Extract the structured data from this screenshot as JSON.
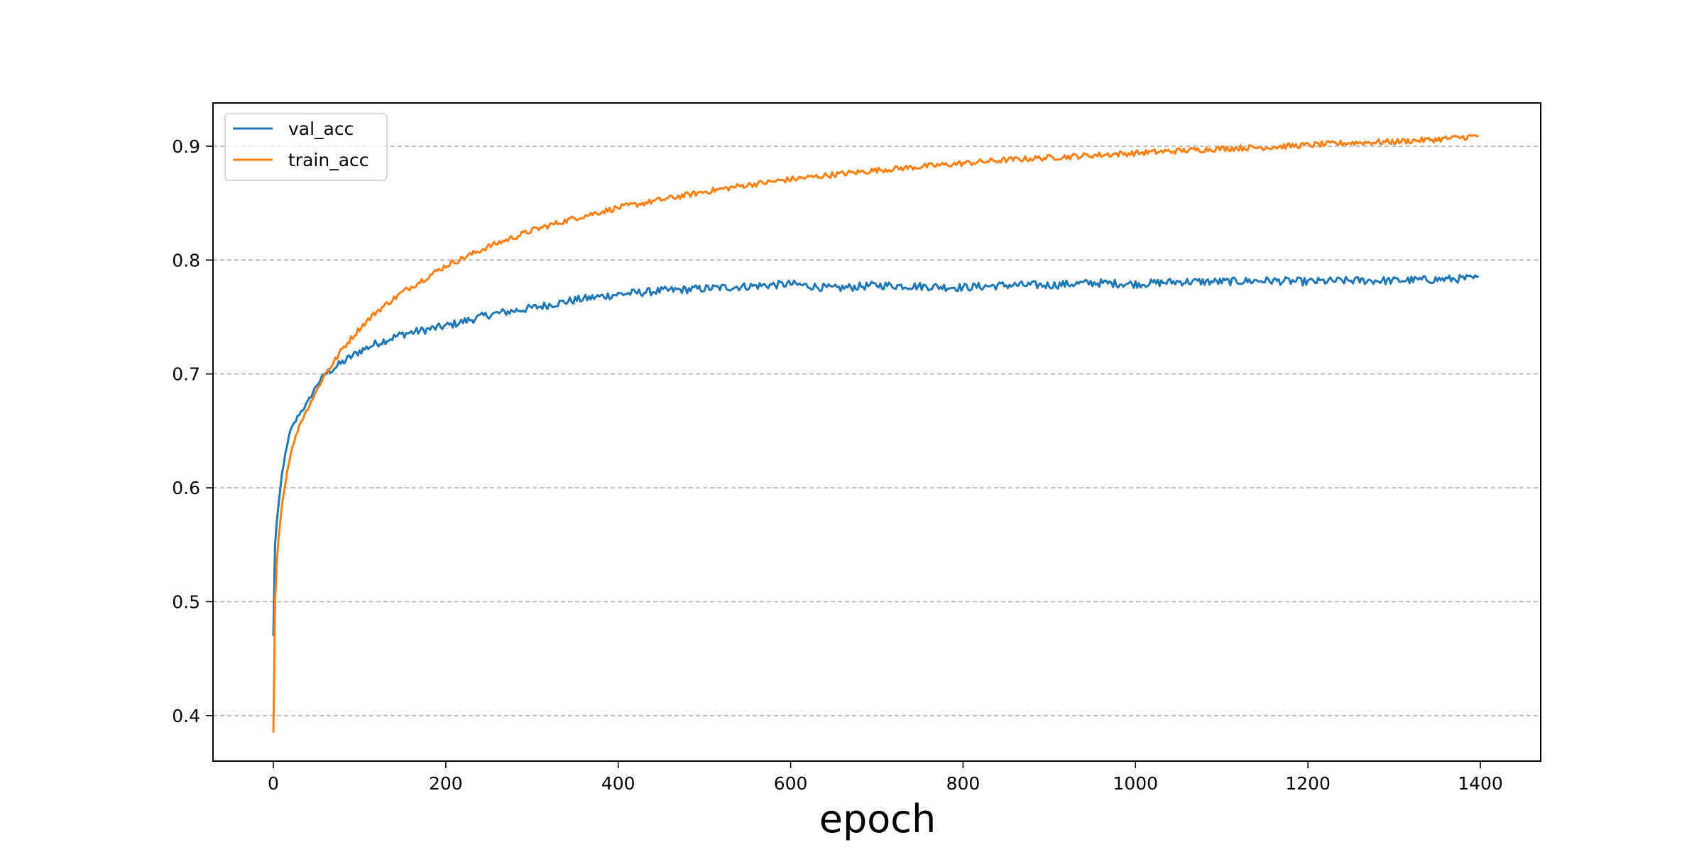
{
  "chart_data": {
    "type": "line",
    "title": "",
    "xlabel": "epoch",
    "ylabel": "",
    "xlim": [
      -70,
      1470
    ],
    "ylim": [
      0.36,
      0.938
    ],
    "xticks": [
      0,
      200,
      400,
      600,
      800,
      1000,
      1200,
      1400
    ],
    "yticks": [
      0.4,
      0.5,
      0.6,
      0.7,
      0.8,
      0.9
    ],
    "grid": "y-dashed",
    "legend": "top-left",
    "series": [
      {
        "name": "val_acc",
        "color": "#1f77b4",
        "x": [
          0,
          2,
          5,
          10,
          15,
          20,
          30,
          40,
          50,
          60,
          70,
          80,
          100,
          120,
          150,
          200,
          250,
          300,
          350,
          400,
          450,
          500,
          550,
          600,
          650,
          700,
          750,
          800,
          850,
          900,
          950,
          1000,
          1050,
          1100,
          1150,
          1200,
          1250,
          1300,
          1350,
          1398
        ],
        "y": [
          0.47,
          0.55,
          0.58,
          0.61,
          0.635,
          0.65,
          0.665,
          0.675,
          0.69,
          0.7,
          0.705,
          0.71,
          0.72,
          0.727,
          0.735,
          0.742,
          0.752,
          0.758,
          0.765,
          0.77,
          0.773,
          0.775,
          0.777,
          0.779,
          0.775,
          0.778,
          0.777,
          0.776,
          0.778,
          0.778,
          0.78,
          0.779,
          0.781,
          0.781,
          0.782,
          0.781,
          0.782,
          0.782,
          0.783,
          0.784
        ],
        "noise": 0.0035
      },
      {
        "name": "train_acc",
        "color": "#ff7f0e",
        "x": [
          0,
          2,
          5,
          10,
          15,
          20,
          30,
          40,
          50,
          60,
          70,
          80,
          100,
          120,
          150,
          200,
          250,
          300,
          350,
          400,
          450,
          500,
          550,
          600,
          650,
          700,
          750,
          800,
          850,
          900,
          950,
          1000,
          1050,
          1100,
          1150,
          1200,
          1250,
          1300,
          1350,
          1398
        ],
        "y": [
          0.385,
          0.5,
          0.55,
          0.585,
          0.61,
          0.63,
          0.655,
          0.67,
          0.685,
          0.7,
          0.71,
          0.722,
          0.74,
          0.755,
          0.772,
          0.795,
          0.812,
          0.826,
          0.837,
          0.846,
          0.853,
          0.86,
          0.866,
          0.871,
          0.875,
          0.879,
          0.882,
          0.885,
          0.888,
          0.89,
          0.892,
          0.894,
          0.896,
          0.898,
          0.899,
          0.901,
          0.903,
          0.904,
          0.906,
          0.909
        ],
        "noise": 0.0025
      }
    ]
  }
}
